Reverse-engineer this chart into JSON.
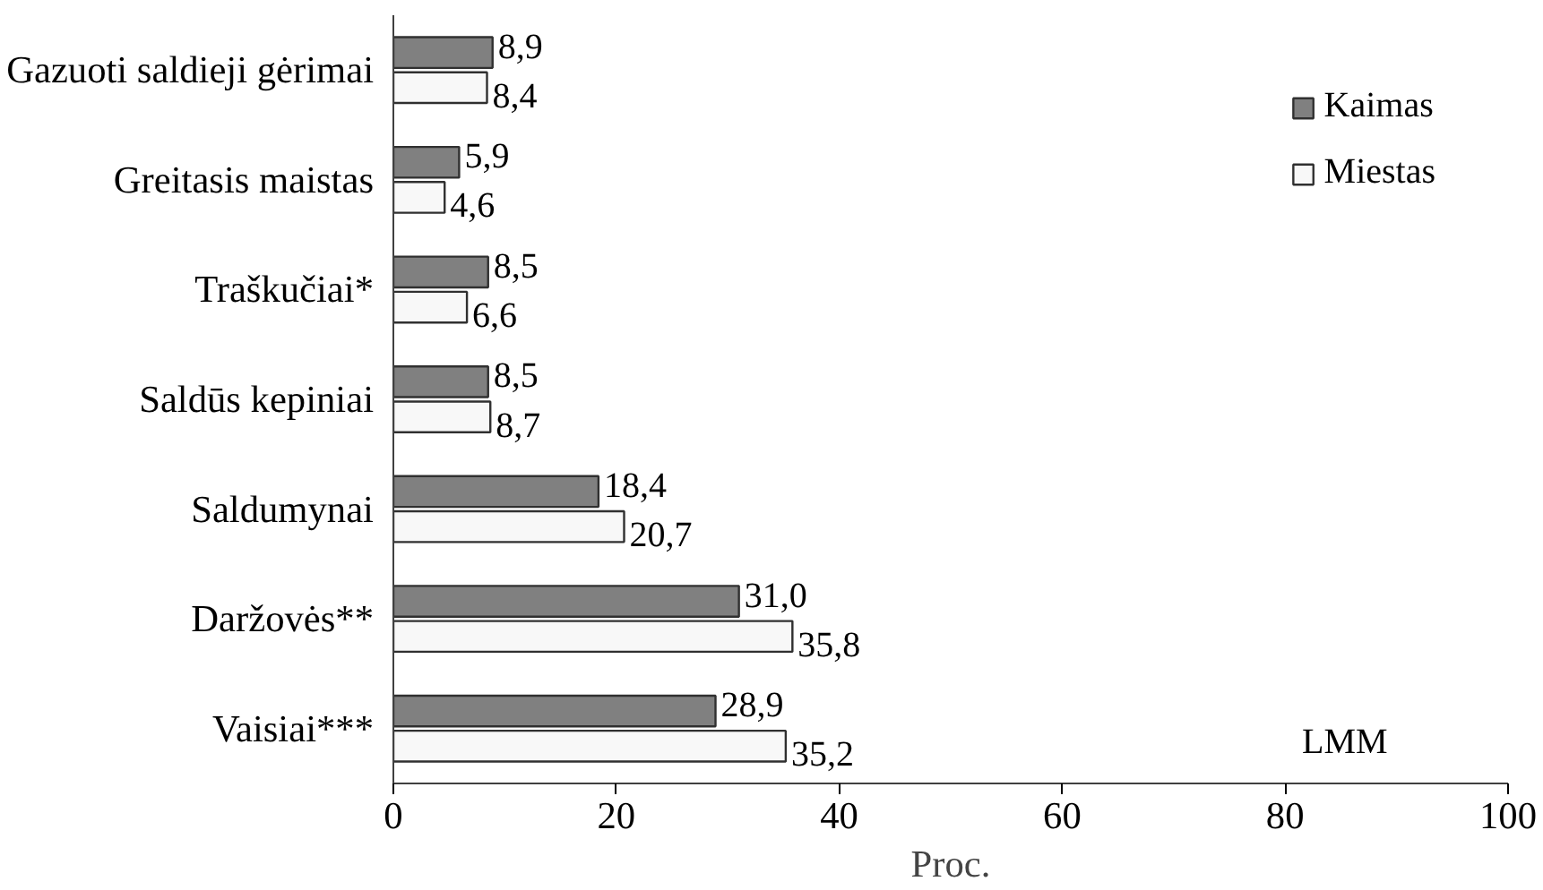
{
  "chart_data": {
    "type": "bar",
    "orientation": "horizontal",
    "xlabel": "Proc.",
    "categories": [
      "Gazuoti saldieji gėrimai",
      "Greitasis maistas",
      "Traškučiai*",
      "Saldūs kepiniai",
      "Saldumynai",
      "Daržovės**",
      "Vaisiai***"
    ],
    "series": [
      {
        "name": "Kaimas",
        "color": "#808080",
        "values": [
          8.9,
          5.9,
          8.5,
          8.5,
          18.4,
          31.0,
          28.9
        ],
        "value_labels": [
          "8,9",
          "5,9",
          "8,5",
          "8,5",
          "18,4",
          "31,0",
          "28,9"
        ]
      },
      {
        "name": "Miestas",
        "color": "#f8f8f8",
        "values": [
          8.4,
          4.6,
          6.6,
          8.7,
          20.7,
          35.8,
          35.2
        ],
        "value_labels": [
          "8,4",
          "4,6",
          "6,6",
          "8,7",
          "20,7",
          "35,8",
          "35,2"
        ]
      }
    ],
    "xlim": [
      0,
      100
    ],
    "xticks": [
      0,
      20,
      40,
      60,
      80,
      100
    ],
    "grid": false,
    "legend": "top right",
    "annotations": [
      "LMM"
    ]
  }
}
